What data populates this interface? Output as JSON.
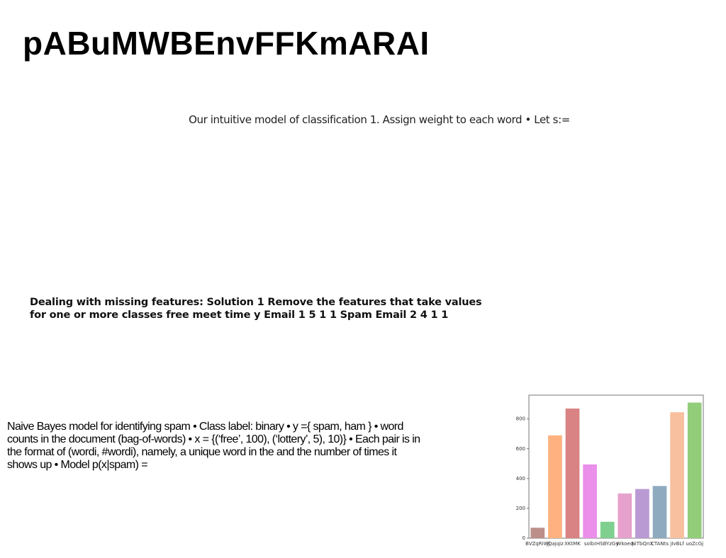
{
  "title": "pABuMWBEnvFFKmARAI",
  "subtitle": "Our intuitive model of classification 1. Assign weight to each word • Let s:=",
  "bold_text": "Dealing with missing features: Solution 1 Remove the features that take values for one or more classes free meet time y Email 1 5 1 1 Spam Email 2 4 1 1",
  "paragraph": "Naive Bayes model for identifying spam • Class label: binary • y ={ spam, ham } • word counts in the document (bag-of-words) • x = {(‘free’, 100), (‘lottery’, 5), 10)} • Each pair is in the format of (wordi, #wordi), namely, a unique word in the and the number of times it shows up • Model p(x|spam) =",
  "chart_data": {
    "type": "bar",
    "categories": [
      "BVZqRiWj",
      "jQajqiz",
      "XKtMK",
      "solbI",
      "HSBYzGy",
      "Wkoeq",
      "NiTbQnX",
      "CTANts",
      "jIvBLf",
      "uoZcGj"
    ],
    "values": [
      70,
      690,
      870,
      495,
      110,
      300,
      330,
      350,
      845,
      910
    ],
    "colors": [
      "#bc8f8a",
      "#ffb27f",
      "#d98384",
      "#ea8fea",
      "#7fcf8f",
      "#e6a1cc",
      "#b99ad2",
      "#8eaabf",
      "#f8c09e",
      "#92cd7a"
    ],
    "ylim": [
      0,
      960
    ],
    "yticks": [
      0,
      200,
      400,
      600,
      800
    ]
  }
}
